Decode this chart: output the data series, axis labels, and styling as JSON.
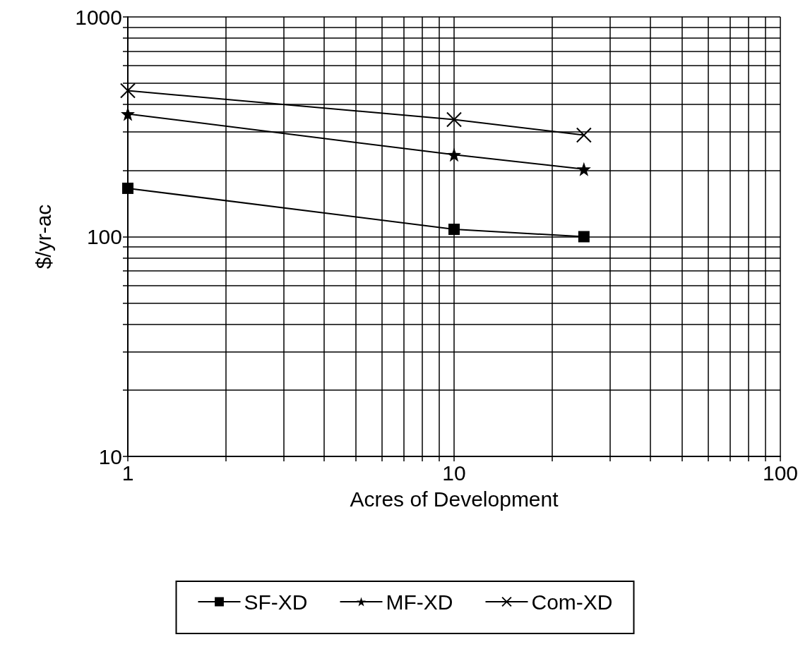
{
  "chart_data": {
    "type": "line",
    "xlabel": "Acres of Development",
    "ylabel": "$/yr-ac",
    "log": "xy",
    "grid": true,
    "legend": "bottom",
    "line_style": "solid",
    "xlim": [
      1,
      100
    ],
    "ylim": [
      10,
      1000
    ],
    "xticks": [
      1,
      {
        "value": 2,
        "label": null
      },
      {
        "value": 3,
        "label": null
      },
      {
        "value": 4,
        "label": null
      },
      {
        "value": 5,
        "label": null
      },
      {
        "value": 6,
        "label": null
      },
      {
        "value": 7,
        "label": null
      },
      {
        "value": 8,
        "label": null
      },
      {
        "value": 9,
        "label": null
      },
      10,
      {
        "value": 20,
        "label": null
      },
      {
        "value": 30,
        "label": null
      },
      {
        "value": 40,
        "label": null
      },
      {
        "value": 50,
        "label": null
      },
      {
        "value": 60,
        "label": null
      },
      {
        "value": 70,
        "label": null
      },
      {
        "value": 80,
        "label": null
      },
      {
        "value": 90,
        "label": null
      },
      100
    ],
    "yticks": [
      10,
      {
        "value": 20,
        "label": null
      },
      {
        "value": 30,
        "label": null
      },
      {
        "value": 40,
        "label": null
      },
      {
        "value": 50,
        "label": null
      },
      {
        "value": 60,
        "label": null
      },
      {
        "value": 70,
        "label": null
      },
      {
        "value": 80,
        "label": null
      },
      {
        "value": 90,
        "label": null
      },
      100,
      {
        "value": 200,
        "label": null
      },
      {
        "value": 300,
        "label": null
      },
      {
        "value": 400,
        "label": null
      },
      {
        "value": 500,
        "label": null
      },
      {
        "value": 600,
        "label": null
      },
      {
        "value": 700,
        "label": null
      },
      {
        "value": 800,
        "label": null
      },
      {
        "value": 900,
        "label": null
      },
      1000
    ],
    "x": [
      1,
      10,
      25
    ],
    "series": [
      {
        "name": "SF-XD",
        "color": "#000000",
        "marker": "square",
        "values": [
          166,
          108,
          100
        ]
      },
      {
        "name": "MF-XD",
        "color": "#000000",
        "marker": "star",
        "values": [
          362,
          236,
          203
        ]
      },
      {
        "name": "Com-XD",
        "color": "#000000",
        "marker": "cross",
        "values": [
          462,
          341,
          290
        ]
      }
    ]
  }
}
